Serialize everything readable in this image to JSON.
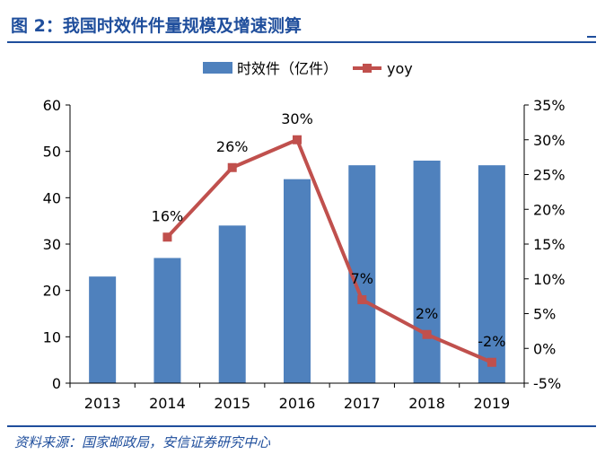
{
  "header": {
    "title": "图 2：我国时效件件量规模及增速测算"
  },
  "footer": {
    "source": "资料来源：国家邮政局，安信证券研究中心"
  },
  "colors": {
    "bar": "#4f81bd",
    "line": "#c0504d",
    "accent": "#1f4e9c",
    "axis": "#000000"
  },
  "chart_data": {
    "type": "bar+line",
    "title": "",
    "categories": [
      "2013",
      "2014",
      "2015",
      "2016",
      "2017",
      "2018",
      "2019"
    ],
    "series": [
      {
        "name": "时效件（亿件）",
        "type": "bar",
        "axis": "left",
        "values": [
          23,
          27,
          34,
          44,
          47,
          48,
          47
        ]
      },
      {
        "name": "yoy",
        "type": "line",
        "axis": "right",
        "values": [
          null,
          16,
          26,
          30,
          7,
          2,
          -2
        ],
        "data_labels": [
          "",
          "16%",
          "26%",
          "30%",
          "7%",
          "2%",
          "-2%"
        ]
      }
    ],
    "y_left": {
      "min": 0,
      "max": 60,
      "step": 10,
      "ticks": [
        "0",
        "10",
        "20",
        "30",
        "40",
        "50",
        "60"
      ]
    },
    "y_right": {
      "min": -5,
      "max": 35,
      "step": 5,
      "ticks": [
        "-5%",
        "0%",
        "5%",
        "10%",
        "15%",
        "20%",
        "25%",
        "30%",
        "35%"
      ]
    },
    "legend": {
      "position": "top-center",
      "entries": [
        "时效件（亿件）",
        "yoy"
      ]
    },
    "grid": false
  }
}
